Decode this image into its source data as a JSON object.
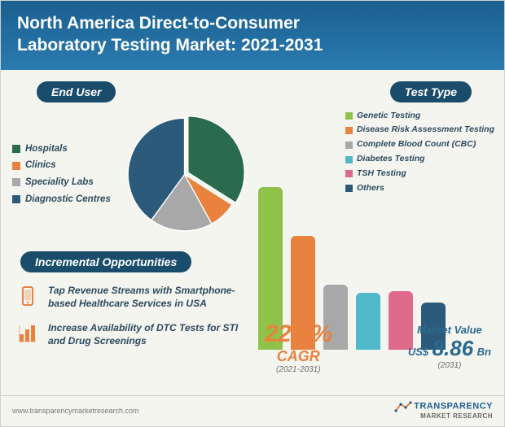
{
  "header": {
    "title_line1": "North America Direct-to-Consumer",
    "title_line2": "Laboratory Testing Market: 2021-2031"
  },
  "end_user": {
    "label": "End User",
    "segments": [
      {
        "name": "Hospitals",
        "color": "#2a6b4e",
        "value": 34
      },
      {
        "name": "Clinics",
        "color": "#e9823e",
        "value": 8
      },
      {
        "name": "Speciality Labs",
        "color": "#a8a8a8",
        "value": 18
      },
      {
        "name": "Diagnostic Centres",
        "color": "#2b5a7a",
        "value": 40
      }
    ],
    "label_color": "#2b4a5e"
  },
  "incremental": {
    "label": "Incremental Opportunities",
    "items": [
      {
        "icon": "phone",
        "text": "Tap Revenue Streams with Smartphone-based Healthcare Services in USA"
      },
      {
        "icon": "chart",
        "text": "Increase Availability of DTC Tests for STI and Drug Screenings"
      }
    ]
  },
  "test_type": {
    "label": "Test Type",
    "series": [
      {
        "name": "Genetic Testing",
        "color": "#8fc24a",
        "value": 200
      },
      {
        "name": "Disease Risk Assessment Testing",
        "color": "#e9823e",
        "value": 140
      },
      {
        "name": "Complete Blood Count (CBC)",
        "color": "#a8a8a8",
        "value": 80
      },
      {
        "name": "Diabetes Testing",
        "color": "#4fb9c9",
        "value": 70
      },
      {
        "name": "TSH Testing",
        "color": "#e06a8a",
        "value": 72
      },
      {
        "name": "Others",
        "color": "#2b5a7a",
        "value": 58
      }
    ]
  },
  "cagr": {
    "value": "22.6%",
    "label": "CAGR",
    "period": "(2021-2031)"
  },
  "market_value": {
    "label": "Market Value",
    "currency": "US$",
    "value": "8.86",
    "unit": "Bn",
    "year": "(2031)"
  },
  "footer": {
    "url": "www.transparencymarketresearch.com",
    "logo_top": "TRANSPARENCY",
    "logo_bottom": "MARKET RESEARCH"
  },
  "colors": {
    "header_bg": "#1a5f8f",
    "pill_bg": "#1a4d6b",
    "accent_orange": "#e9823e",
    "accent_blue": "#2b6a8f",
    "bg": "#f5f5f0"
  }
}
